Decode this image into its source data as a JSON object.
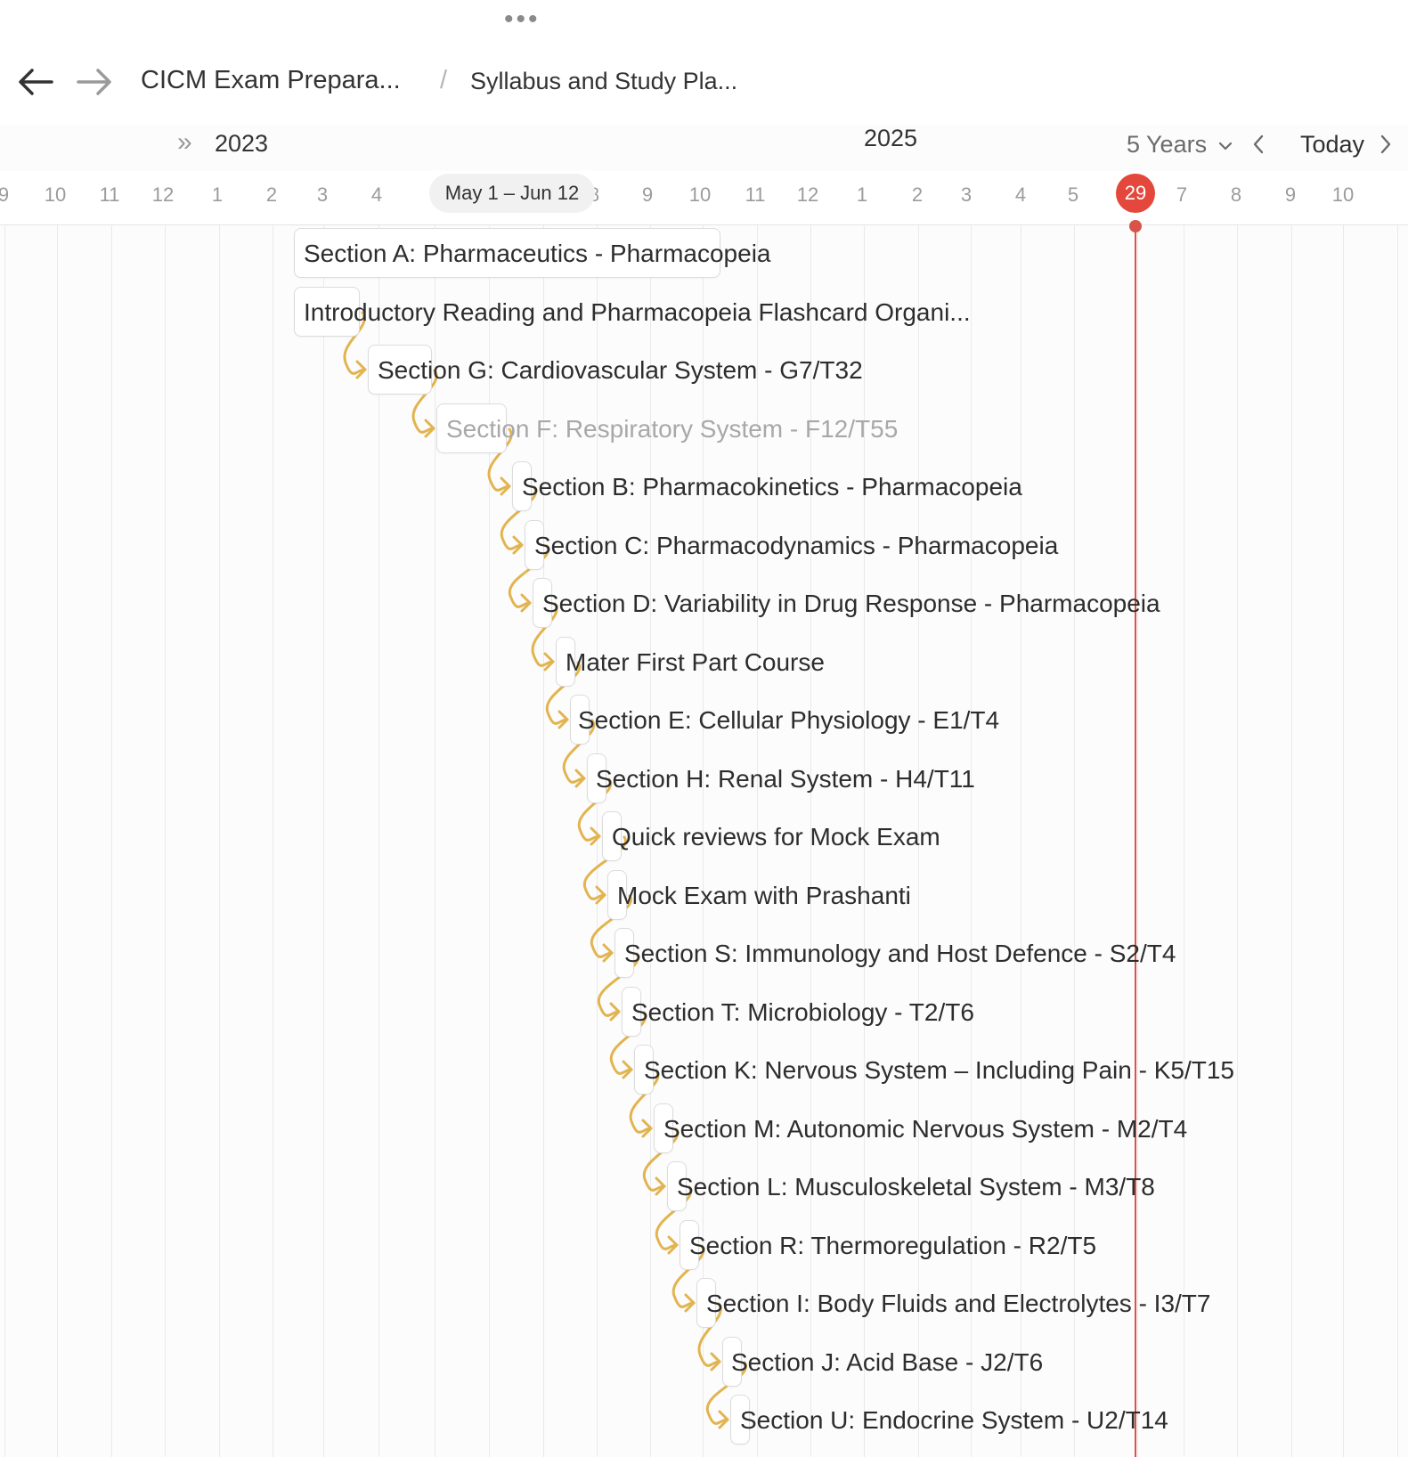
{
  "header": {
    "more_icon": "more-horizontal-icon",
    "back_icon": "arrow-left-icon",
    "forward_icon": "arrow-right-icon",
    "breadcrumb": [
      "CICM Exam Prepara...",
      "Syllabus and Study Pla..."
    ],
    "separator": "/"
  },
  "timeline": {
    "year_left": "2023",
    "year_center": "2025",
    "range_select": "5 Years",
    "today_button": "Today",
    "selected_range": "May 1 – Jun 12",
    "today_marker": "29",
    "months": [
      "9",
      "10",
      "11",
      "12",
      "1",
      "2",
      "3",
      "4",
      "8",
      "9",
      "10",
      "11",
      "12",
      "1",
      "2",
      "3",
      "4",
      "5",
      "7",
      "8",
      "9",
      "10"
    ]
  },
  "tasks": [
    {
      "label": "Section A: Pharmaceutics - Pharmacopeia"
    },
    {
      "label": "Introductory Reading and Pharmacopeia Flashcard Organi..."
    },
    {
      "label": "Section G: Cardiovascular System - G7/T32"
    },
    {
      "label": "Section F: Respiratory System - F12/T55"
    },
    {
      "label": "Section B: Pharmacokinetics - Pharmacopeia"
    },
    {
      "label": "Section C: Pharmacodynamics - Pharmacopeia"
    },
    {
      "label": "Section D: Variability in Drug Response - Pharmacopeia"
    },
    {
      "label": "Mater First Part Course"
    },
    {
      "label": "Section E: Cellular Physiology - E1/T4"
    },
    {
      "label": "Section H: Renal System - H4/T11"
    },
    {
      "label": "Quick reviews for Mock Exam"
    },
    {
      "label": "Mock Exam with Prashanti"
    },
    {
      "label": "Section S: Immunology and Host Defence - S2/T4"
    },
    {
      "label": "Section T: Microbiology - T2/T6"
    },
    {
      "label": "Section K: Nervous System – Including Pain - K5/T15"
    },
    {
      "label": "Section M: Autonomic Nervous System - M2/T4"
    },
    {
      "label": "Section L: Musculoskeletal System - M3/T8"
    },
    {
      "label": "Section R: Thermoregulation - R2/T5"
    },
    {
      "label": "Section I: Body Fluids and Electrolytes - I3/T7"
    },
    {
      "label": "Section J: Acid Base - J2/T6"
    },
    {
      "label": "Section U: Endocrine System - U2/T14"
    }
  ],
  "colors": {
    "dependency": "#e2b44f",
    "today": "#d9534a"
  }
}
